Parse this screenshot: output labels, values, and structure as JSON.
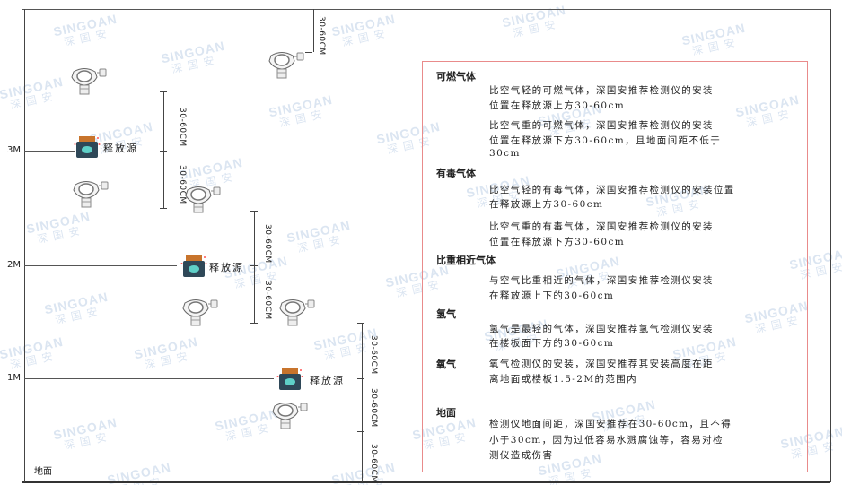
{
  "watermark": {
    "brand": "SINGOAN",
    "brand_cn": "深国安"
  },
  "levels": {
    "m3": "3M",
    "m2": "2M",
    "m1": "1M",
    "ground": "地面"
  },
  "dimension_label": "30-60CM",
  "release_source_label": "释放源",
  "colors": {
    "frame": "#555555",
    "box_border": "#e98b8b",
    "source_body": "#2f4858",
    "source_cap": "#c8742c",
    "source_face": "#5fd0c8"
  },
  "info": {
    "combustible": {
      "title": "可燃气体",
      "lighter": [
        "比空气轻的可燃气体，深国安推荐检测仪的安装",
        "位置在释放源上方30-60cm"
      ],
      "heavier": [
        "比空气重的可燃气体，深国安推荐检测仪的安装",
        "位置在释放源下方30-60cm，且地面间距不低于",
        "30cm"
      ]
    },
    "toxic": {
      "title": "有毒气体",
      "lighter": [
        "比空气轻的有毒气体，深国安推荐检测仪的安装位置",
        "在释放源上方30-60cm"
      ],
      "heavier": [
        "比空气重的有毒气体，深国安推荐检测仪的安装",
        "位置在释放源下方30-60cm"
      ]
    },
    "similar": {
      "title": "比重相近气体",
      "text": [
        "与空气比重相近的气体，深国安推荐检测仪安装",
        "在释放源上下的30-60cm"
      ]
    },
    "hydrogen": {
      "title": "氢气",
      "text": [
        "氢气是最轻的气体，深国安推荐氢气检测仪安装",
        "在楼板面下方的30-60cm"
      ]
    },
    "oxygen": {
      "title": "氧气",
      "text": [
        "氧气检测仪的安装，深国安推荐其安装高度在距",
        "离地面或楼板1.5-2M的范围内"
      ]
    },
    "ground": {
      "title": "地面",
      "text": [
        "检测仪地面间距，深国安推荐在30-60cm，且不得",
        "小于30cm，因为过低容易水溅腐蚀等，容易对检",
        "测仪造成伤害"
      ]
    }
  }
}
